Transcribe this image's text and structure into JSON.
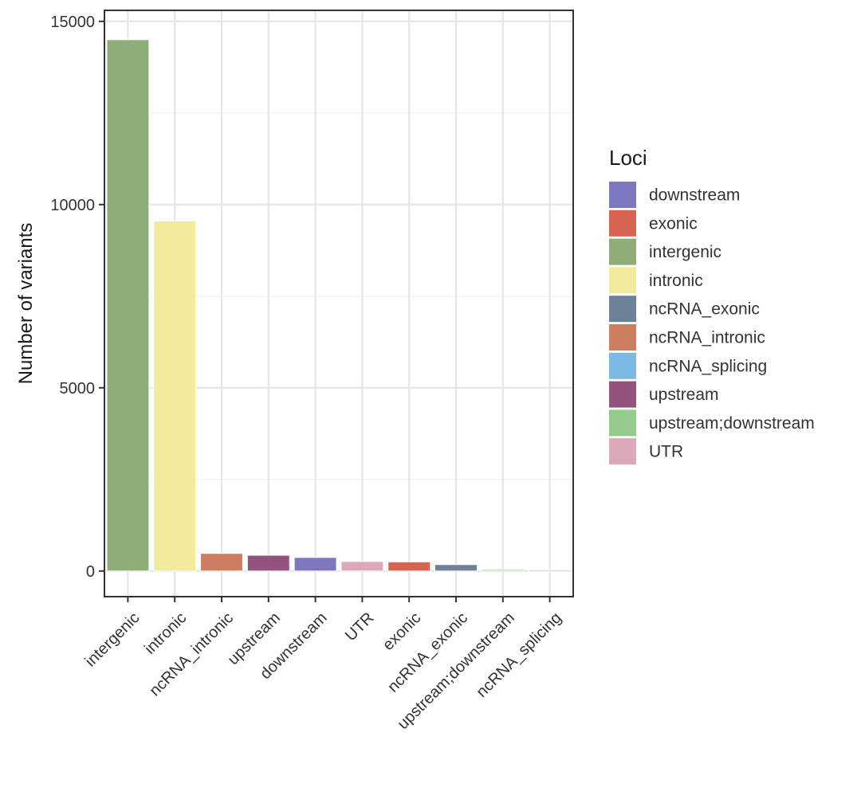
{
  "chart_data": {
    "type": "bar",
    "title": "",
    "xlabel": "",
    "ylabel": "Number of variants",
    "ylim": [
      -700,
      15300
    ],
    "y_ticks": [
      0,
      5000,
      10000,
      15000
    ],
    "y_tick_labels": [
      "0",
      "5000",
      "10000",
      "15000"
    ],
    "grid": true,
    "legend_position": "right",
    "categories": [
      "intergenic",
      "intronic",
      "ncRNA_intronic",
      "upstream",
      "downstream",
      "UTR",
      "exonic",
      "ncRNA_exonic",
      "upstream;downstream",
      "ncRNA_splicing"
    ],
    "values": [
      14500,
      9550,
      480,
      430,
      370,
      260,
      250,
      175,
      40,
      25
    ],
    "bar_colors": [
      "#8ead77",
      "#f3eb9c",
      "#cd7e5e",
      "#94537d",
      "#7b78bd",
      "#dba9b9",
      "#d76450",
      "#6d8299",
      "#93cc8a",
      "#7eb9e6"
    ],
    "legend": {
      "title": "Loci",
      "entries": [
        {
          "label": "downstream",
          "color": "#7b78bd"
        },
        {
          "label": "exonic",
          "color": "#d76450"
        },
        {
          "label": "intergenic",
          "color": "#8ead77"
        },
        {
          "label": "intronic",
          "color": "#f3eb9c"
        },
        {
          "label": "ncRNA_exonic",
          "color": "#6d8299"
        },
        {
          "label": "ncRNA_intronic",
          "color": "#cd7e5e"
        },
        {
          "label": "ncRNA_splicing",
          "color": "#7eb9e6"
        },
        {
          "label": "upstream",
          "color": "#94537d"
        },
        {
          "label": "upstream;downstream",
          "color": "#93cc8a"
        },
        {
          "label": "UTR",
          "color": "#dba9b9"
        }
      ]
    }
  }
}
